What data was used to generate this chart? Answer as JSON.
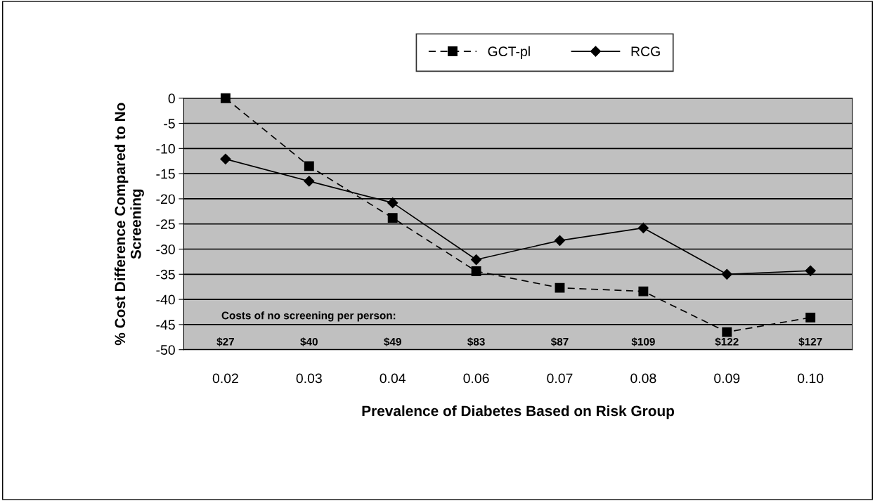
{
  "chart_data": {
    "type": "line",
    "xlabel": "Prevalence of Diabetes Based on Risk Group",
    "ylabel": "% Cost Difference Compared to No\nScreening",
    "categories": [
      "0.02",
      "0.03",
      "0.04",
      "0.06",
      "0.07",
      "0.08",
      "0.09",
      "0.10"
    ],
    "series": [
      {
        "name": "GCT-pl",
        "color": "#000000",
        "marker": "square",
        "line_style": "dashed",
        "values": [
          0,
          -13.5,
          -23.8,
          -34.4,
          -37.7,
          -38.4,
          -46.5,
          -43.6
        ]
      },
      {
        "name": "RCG",
        "color": "#000000",
        "marker": "diamond",
        "line_style": "solid",
        "values": [
          -12.1,
          -16.5,
          -20.8,
          -32.1,
          -28.3,
          -25.8,
          -35,
          -34.3
        ]
      }
    ],
    "ylim": [
      -50,
      0
    ],
    "yticks": [
      -50,
      -45,
      -40,
      -35,
      -30,
      -25,
      -20,
      -15,
      -10,
      -5,
      0
    ],
    "grid": "y",
    "legend": "top",
    "annotations": [
      "Costs of no screening per person:",
      "$27",
      "$40",
      "$49",
      "$83",
      "$87",
      "$109",
      "$122",
      "$127"
    ]
  }
}
